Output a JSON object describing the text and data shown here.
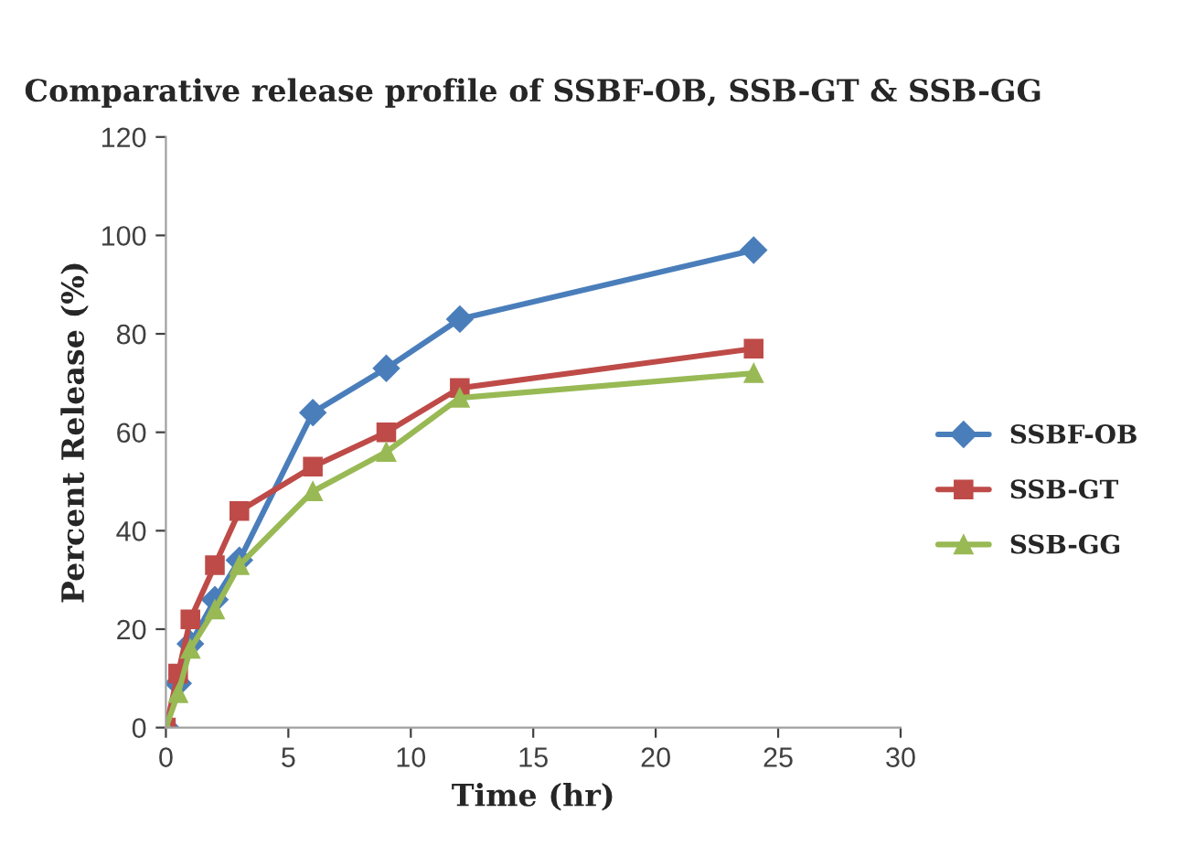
{
  "chart_data": {
    "type": "line",
    "title": "Comparative release profile of SSBF-OB, SSB-GT & SSB-GG",
    "xlabel": "Time (hr)",
    "ylabel": "Percent Release (%)",
    "x": [
      0,
      0.5,
      1,
      2,
      3,
      6,
      9,
      12,
      24
    ],
    "series": [
      {
        "name": "SSBF-OB",
        "color": "#4a7ebb",
        "marker": "diamond",
        "values": [
          0,
          9,
          17,
          26,
          34,
          64,
          73,
          83,
          97
        ]
      },
      {
        "name": "SSB-GT",
        "color": "#be4b48",
        "marker": "square",
        "values": [
          0,
          11,
          22,
          33,
          44,
          53,
          60,
          69,
          77
        ]
      },
      {
        "name": "SSB-GG",
        "color": "#98b954",
        "marker": "triangle",
        "values": [
          0,
          7,
          16,
          24,
          33,
          48,
          56,
          67,
          72
        ]
      }
    ],
    "xlim": [
      0,
      30
    ],
    "xticks": [
      0,
      5,
      10,
      15,
      20,
      25,
      30
    ],
    "ylim": [
      0,
      120
    ],
    "yticks": [
      0,
      20,
      40,
      60,
      80,
      100,
      120
    ],
    "grid": false,
    "legend": "right"
  }
}
